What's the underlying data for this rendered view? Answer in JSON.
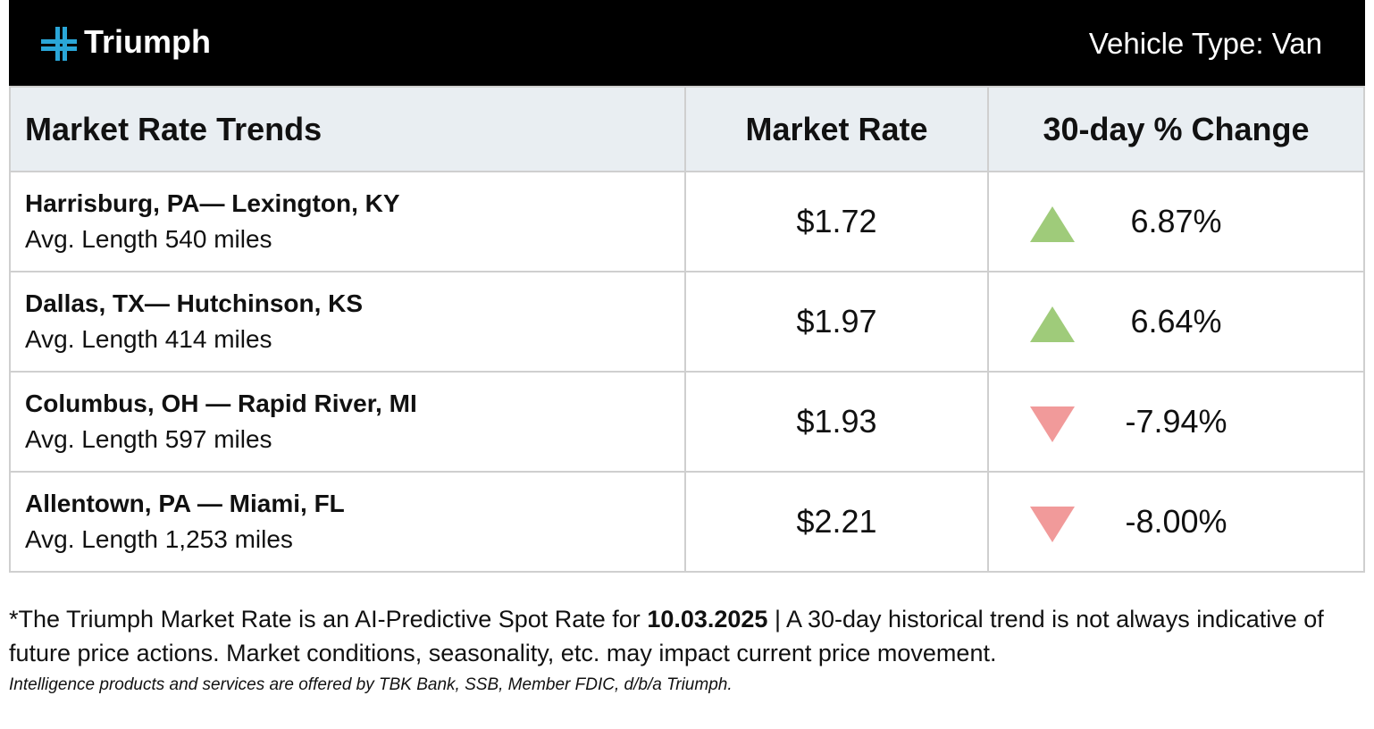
{
  "header": {
    "brand": "Triumph",
    "vehicle_type": "Vehicle Type: Van"
  },
  "table": {
    "columns": [
      "Market Rate Trends",
      "Market Rate",
      "30-day % Change"
    ],
    "rows": [
      {
        "route": "Harrisburg, PA— Lexington, KY",
        "length": "Avg. Length 540 miles",
        "rate": "$1.72",
        "change": "6.87%"
      },
      {
        "route": "Dallas, TX— Hutchinson, KS",
        "length": "Avg. Length 414 miles",
        "rate": "$1.97",
        "change": "6.64%"
      },
      {
        "route": "Columbus, OH — Rapid River, MI",
        "length": "Avg. Length 597 miles",
        "rate": "$1.93",
        "change": "-7.94%"
      },
      {
        "route": "Allentown, PA — Miami, FL",
        "length": "Avg. Length 1,253 miles",
        "rate": "$2.21",
        "change": "-8.00%"
      }
    ]
  },
  "footnote": {
    "before": "*The Triumph Market Rate is an AI-Predictive Spot Rate for ",
    "date": "10.03.2025",
    "after": " | A 30-day historical trend is not always indicative of future price actions. Market conditions, seasonality, etc. may impact current price movement.",
    "disclaimer": "Intelligence products and services are offered by TBK Bank, SSB, Member FDIC, d/b/a Triumph."
  }
}
